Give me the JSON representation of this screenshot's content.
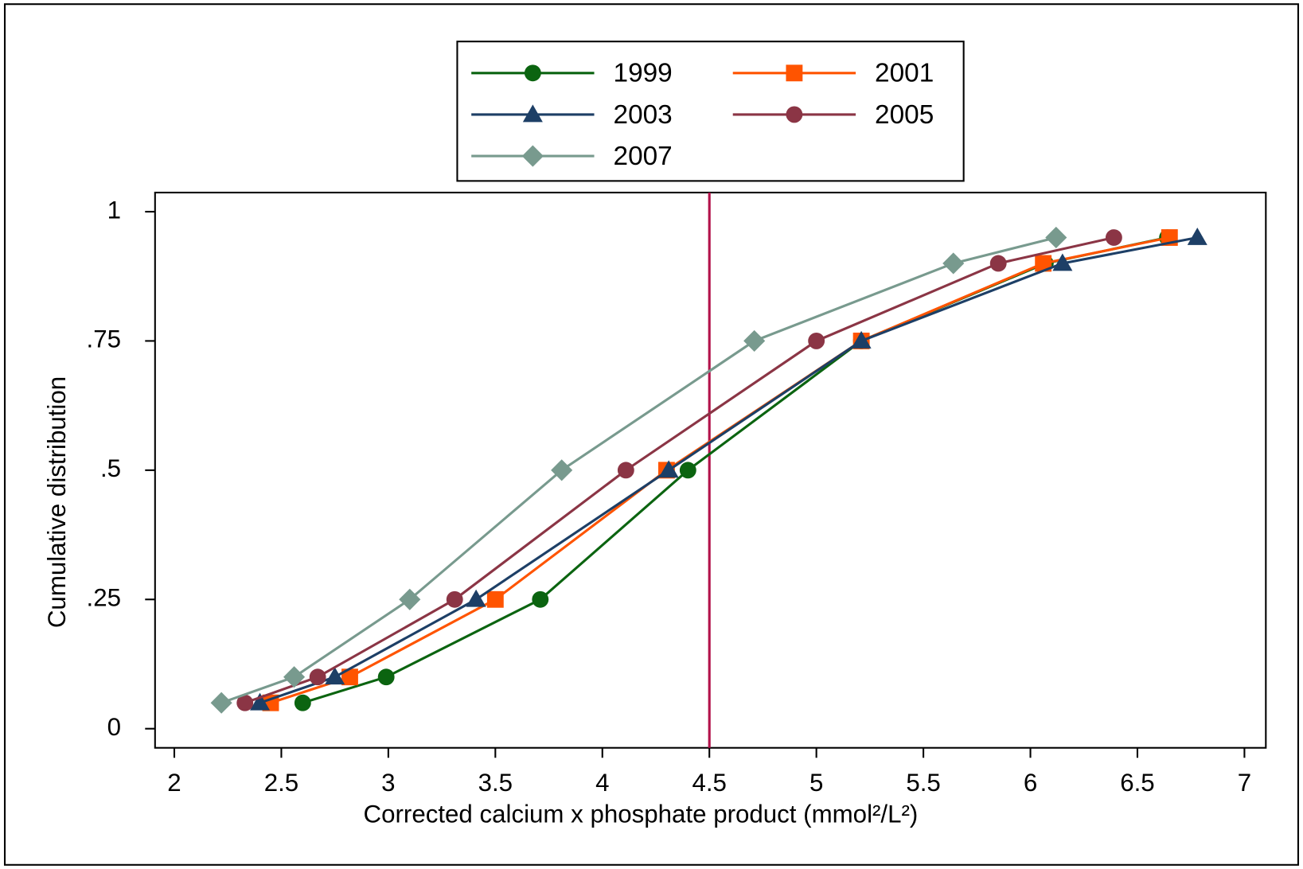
{
  "chart_data": {
    "type": "line",
    "x_label": "Corrected calcium x phosphate product (mmol²/L²)",
    "y_label": "Cumulative distribution",
    "xlim": [
      1.91,
      7.1
    ],
    "ylim": [
      -0.037,
      1.037
    ],
    "xticks": [
      2,
      2.5,
      3,
      3.5,
      4,
      4.5,
      5,
      5.5,
      6,
      6.5,
      7
    ],
    "yticks": [
      0,
      {
        "value": 0.25,
        "label": ".25"
      },
      {
        "value": 0.5,
        "label": ".5"
      },
      {
        "value": 0.75,
        "label": ".75"
      },
      1
    ],
    "grid": false,
    "legend": {
      "position": "top",
      "columns": 2
    },
    "reference_line": {
      "x": 4.5,
      "color": "#b3124a"
    },
    "series": [
      {
        "name": "1999",
        "color": "#0b6410",
        "marker": "circle",
        "x": [
          2.6,
          2.99,
          3.71,
          4.4,
          5.21,
          6.07,
          6.64
        ],
        "values": [
          0.05,
          0.1,
          0.25,
          0.5,
          0.75,
          0.9,
          0.95
        ]
      },
      {
        "name": "2001",
        "color": "#ff5400",
        "marker": "square",
        "x": [
          2.45,
          2.82,
          3.5,
          4.3,
          5.21,
          6.06,
          6.65
        ],
        "values": [
          0.05,
          0.1,
          0.25,
          0.5,
          0.75,
          0.9,
          0.95
        ]
      },
      {
        "name": "2003",
        "color": "#1d3f66",
        "marker": "triangle",
        "x": [
          2.4,
          2.75,
          3.41,
          4.31,
          5.21,
          6.15,
          6.78
        ],
        "values": [
          0.05,
          0.1,
          0.25,
          0.5,
          0.75,
          0.9,
          0.95
        ]
      },
      {
        "name": "2005",
        "color": "#8b3545",
        "marker": "circle",
        "x": [
          2.33,
          2.67,
          3.31,
          4.11,
          5.0,
          5.85,
          6.39
        ],
        "values": [
          0.05,
          0.1,
          0.25,
          0.5,
          0.75,
          0.9,
          0.95
        ]
      },
      {
        "name": "2007",
        "color": "#789a8e",
        "marker": "diamond",
        "x": [
          2.22,
          2.56,
          3.1,
          3.81,
          4.71,
          5.64,
          6.12
        ],
        "values": [
          0.05,
          0.1,
          0.25,
          0.5,
          0.75,
          0.9,
          0.95
        ]
      }
    ]
  }
}
